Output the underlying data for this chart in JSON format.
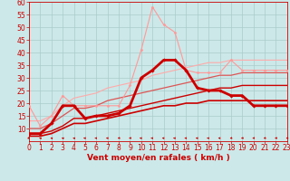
{
  "background_color": "#cce8e8",
  "grid_color": "#aacccc",
  "xlabel": "Vent moyen/en rafales ( km/h )",
  "xlabel_color": "#cc0000",
  "xlabel_fontsize": 6.5,
  "tick_color": "#cc0000",
  "tick_fontsize": 5.5,
  "ylim": [
    5,
    60
  ],
  "xlim": [
    0,
    23
  ],
  "yticks": [
    10,
    15,
    20,
    25,
    30,
    35,
    40,
    45,
    50,
    55,
    60
  ],
  "xticks": [
    0,
    1,
    2,
    3,
    4,
    5,
    6,
    7,
    8,
    9,
    10,
    11,
    12,
    13,
    14,
    15,
    16,
    17,
    18,
    19,
    20,
    21,
    22,
    23
  ],
  "series": [
    {
      "x": [
        0,
        1,
        2,
        3,
        4,
        5,
        6,
        7,
        8,
        9,
        10,
        11,
        12,
        13,
        14,
        15,
        16,
        17,
        18,
        19,
        20,
        21,
        22,
        23
      ],
      "y": [
        8,
        8,
        12,
        19,
        19,
        14,
        15,
        15,
        16,
        19,
        30,
        33,
        37,
        37,
        33,
        26,
        25,
        25,
        23,
        23,
        19,
        19,
        19,
        19
      ],
      "color": "#cc0000",
      "linewidth": 2.0,
      "marker": "D",
      "markersize": 1.8,
      "zorder": 5
    },
    {
      "x": [
        0,
        1,
        2,
        3,
        4,
        5,
        6,
        7,
        8,
        9,
        10,
        11,
        12,
        13,
        14,
        15,
        16,
        17,
        18,
        19,
        20,
        21,
        22,
        23
      ],
      "y": [
        19,
        11,
        15,
        23,
        19,
        19,
        19,
        19,
        19,
        27,
        41,
        58,
        51,
        48,
        33,
        32,
        32,
        32,
        37,
        33,
        33,
        33,
        33,
        33
      ],
      "color": "#ff9999",
      "linewidth": 0.8,
      "marker": "D",
      "markersize": 1.5,
      "zorder": 4
    },
    {
      "x": [
        0,
        1,
        2,
        3,
        4,
        5,
        6,
        7,
        8,
        9,
        10,
        11,
        12,
        13,
        14,
        15,
        16,
        17,
        18,
        19,
        20,
        21,
        22,
        23
      ],
      "y": [
        7,
        7,
        8,
        10,
        12,
        12,
        13,
        14,
        15,
        16,
        17,
        18,
        19,
        19,
        20,
        20,
        21,
        21,
        21,
        21,
        21,
        21,
        21,
        21
      ],
      "color": "#cc0000",
      "linewidth": 1.2,
      "marker": null,
      "markersize": 0,
      "zorder": 3
    },
    {
      "x": [
        0,
        1,
        2,
        3,
        4,
        5,
        6,
        7,
        8,
        9,
        10,
        11,
        12,
        13,
        14,
        15,
        16,
        17,
        18,
        19,
        20,
        21,
        22,
        23
      ],
      "y": [
        8,
        8,
        9,
        11,
        14,
        14,
        15,
        16,
        17,
        18,
        19,
        20,
        21,
        22,
        23,
        24,
        25,
        26,
        26,
        27,
        27,
        27,
        27,
        27
      ],
      "color": "#cc0000",
      "linewidth": 1.0,
      "marker": null,
      "markersize": 0,
      "zorder": 3
    },
    {
      "x": [
        0,
        1,
        2,
        3,
        4,
        5,
        6,
        7,
        8,
        9,
        10,
        11,
        12,
        13,
        14,
        15,
        16,
        17,
        18,
        19,
        20,
        21,
        22,
        23
      ],
      "y": [
        10,
        10,
        12,
        15,
        18,
        18,
        19,
        21,
        22,
        23,
        24,
        25,
        26,
        27,
        28,
        29,
        30,
        31,
        31,
        32,
        32,
        32,
        32,
        32
      ],
      "color": "#dd5555",
      "linewidth": 0.9,
      "marker": null,
      "markersize": 0,
      "zorder": 3
    },
    {
      "x": [
        0,
        1,
        2,
        3,
        4,
        5,
        6,
        7,
        8,
        9,
        10,
        11,
        12,
        13,
        14,
        15,
        16,
        17,
        18,
        19,
        20,
        21,
        22,
        23
      ],
      "y": [
        13,
        13,
        15,
        19,
        22,
        23,
        24,
        26,
        27,
        28,
        29,
        31,
        32,
        33,
        34,
        35,
        36,
        36,
        37,
        37,
        37,
        37,
        37,
        37
      ],
      "color": "#ffaaaa",
      "linewidth": 0.8,
      "marker": null,
      "markersize": 0,
      "zorder": 2
    }
  ],
  "wind_arrow_angles": [
    45,
    225,
    225,
    225,
    225,
    270,
    270,
    292,
    315,
    315,
    270,
    270,
    270,
    270,
    270,
    270,
    270,
    270,
    315,
    315,
    315,
    315,
    315,
    315
  ]
}
